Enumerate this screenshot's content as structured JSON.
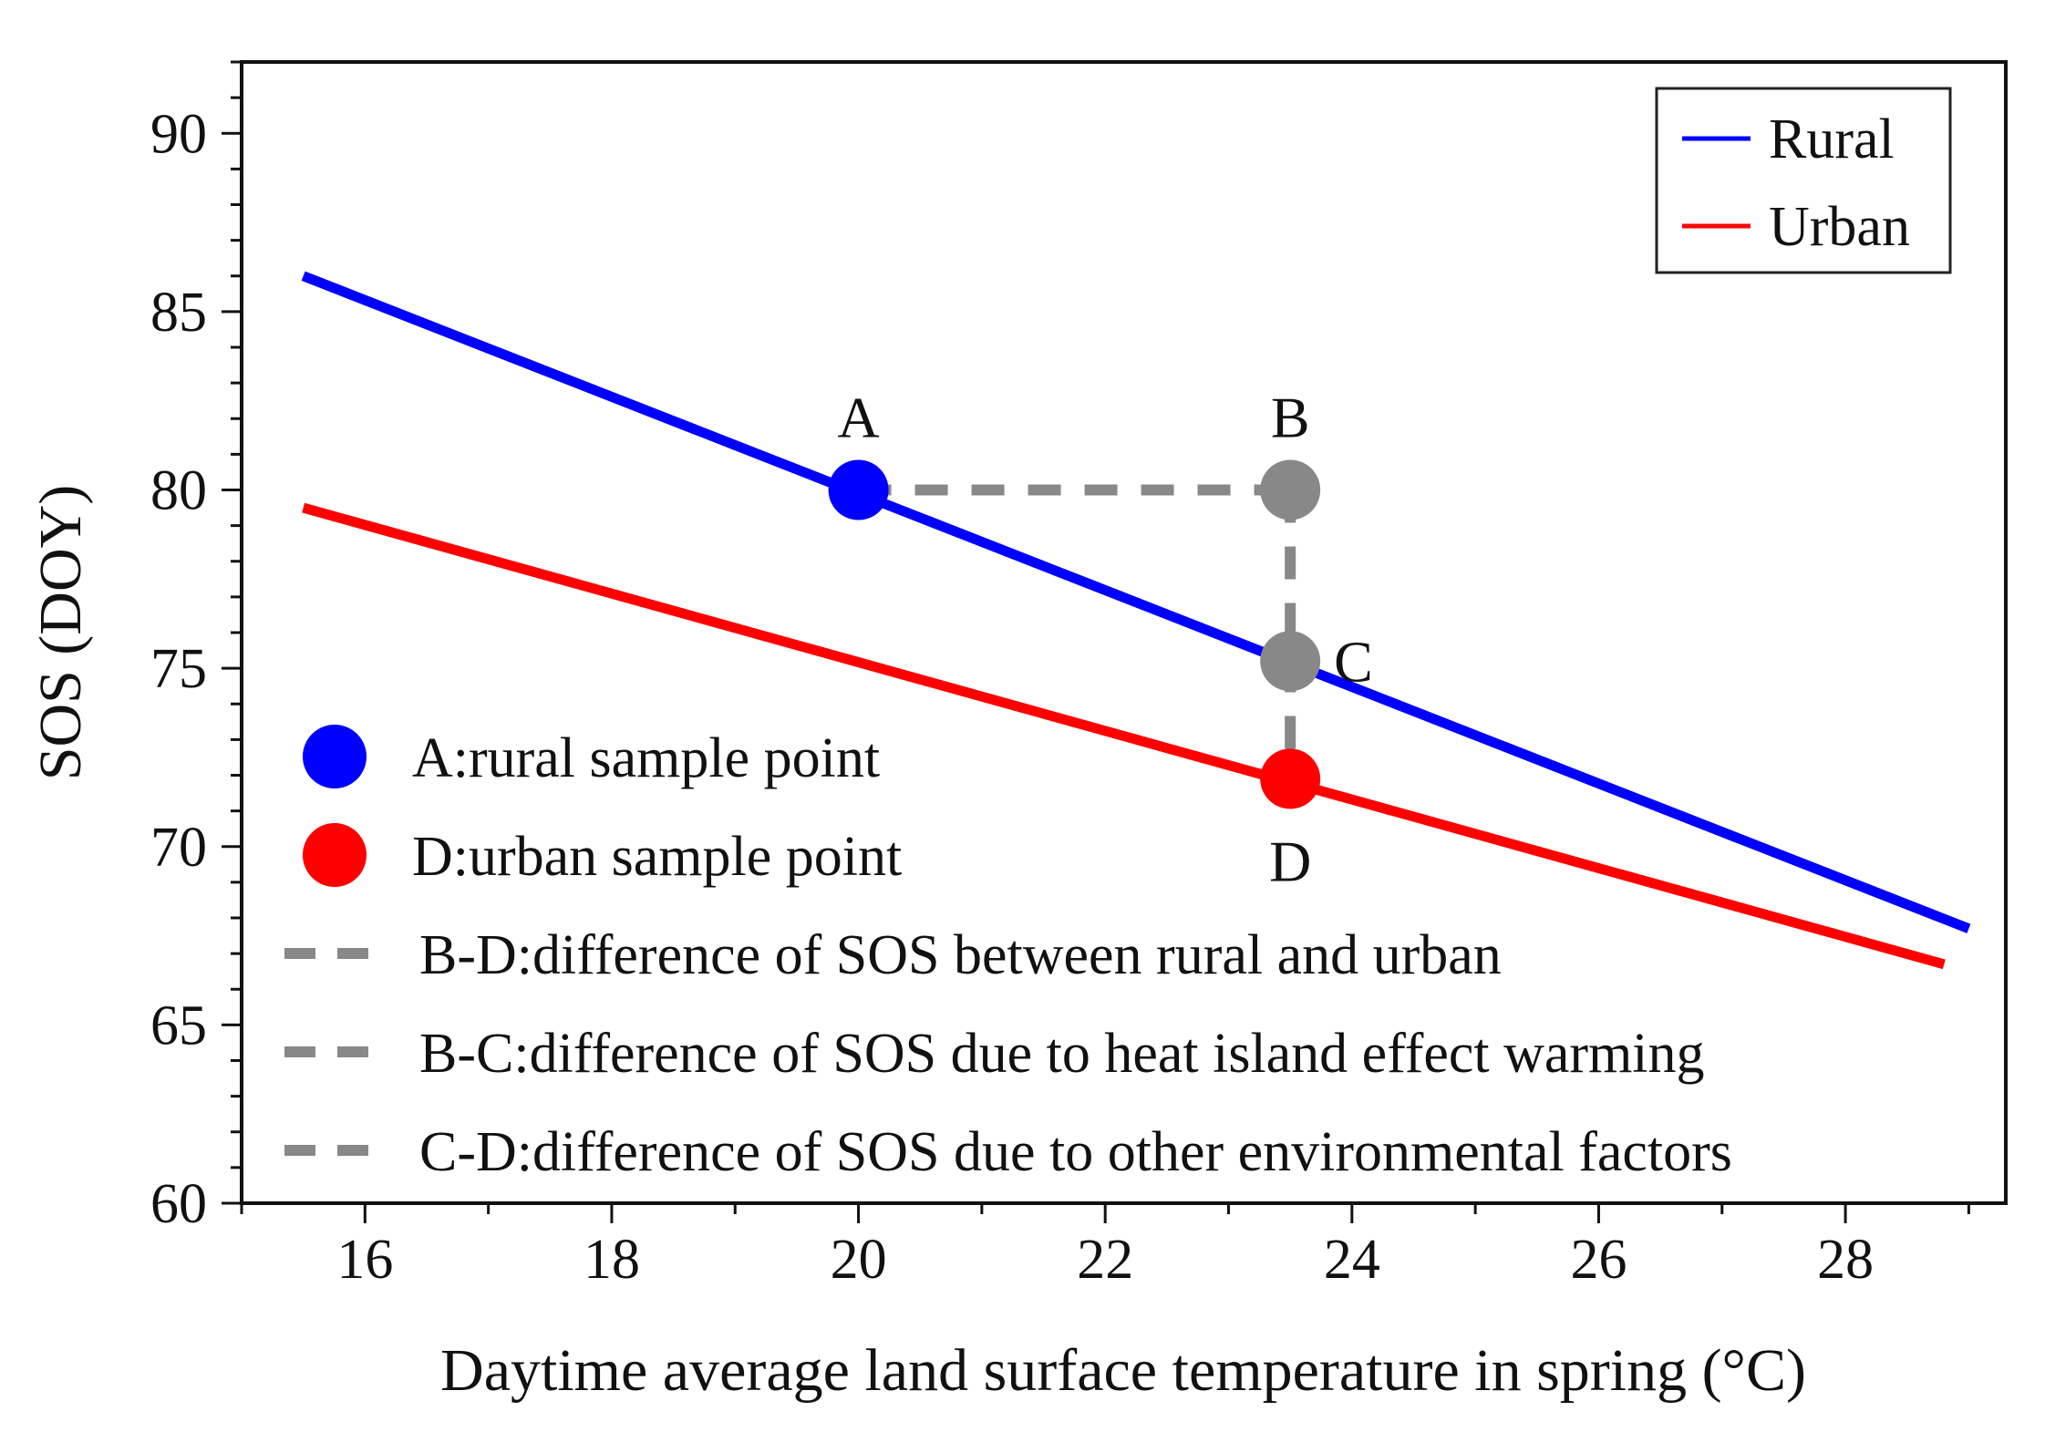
{
  "chart_data": {
    "type": "line",
    "xlabel": "Daytime average land surface temperature in spring (°C)",
    "ylabel": "SOS (DOY)",
    "xlim": [
      15,
      29.3
    ],
    "ylim": [
      60,
      92
    ],
    "xticks": [
      16,
      18,
      20,
      22,
      24,
      26,
      28
    ],
    "yticks": [
      60,
      65,
      70,
      75,
      80,
      85,
      90
    ],
    "grid": false,
    "series": [
      {
        "name": "Rural",
        "color": "#0000ff",
        "x": [
          15.5,
          29.0
        ],
        "y": [
          86.0,
          67.7
        ]
      },
      {
        "name": "Urban",
        "color": "#ff0000",
        "x": [
          15.5,
          28.8
        ],
        "y": [
          79.5,
          66.7
        ]
      }
    ],
    "points": [
      {
        "label": "A",
        "x": 20.0,
        "y": 80.0,
        "color": "#0000ff",
        "label_pos": "above"
      },
      {
        "label": "B",
        "x": 23.5,
        "y": 80.0,
        "color": "#888888",
        "label_pos": "above"
      },
      {
        "label": "C",
        "x": 23.5,
        "y": 75.2,
        "color": "#888888",
        "label_pos": "right"
      },
      {
        "label": "D",
        "x": 23.5,
        "y": 71.9,
        "color": "#ff0000",
        "label_pos": "below"
      }
    ],
    "dashed_segments": [
      {
        "from": "A",
        "to": "B",
        "color": "#888888"
      },
      {
        "from": "B",
        "to": "D",
        "color": "#888888"
      }
    ],
    "legend_lines": {
      "placement": "top-right",
      "entries": [
        {
          "label": "Rural",
          "color": "#0000ff"
        },
        {
          "label": "Urban",
          "color": "#ff0000"
        }
      ]
    },
    "legend_annotations": {
      "placement": "bottom-left",
      "entries": [
        {
          "marker": "circle",
          "color": "#0000ff",
          "text": "A:rural sample point"
        },
        {
          "marker": "circle",
          "color": "#ff0000",
          "text": "D:urban sample point"
        },
        {
          "marker": "dash",
          "color": "#888888",
          "text": "B-D:difference of SOS between rural and urban"
        },
        {
          "marker": "dash",
          "color": "#888888",
          "text": "B-C:difference of SOS due to heat island effect warming"
        },
        {
          "marker": "dash",
          "color": "#888888",
          "text": "C-D:difference of SOS due to other environmental factors"
        }
      ]
    }
  }
}
